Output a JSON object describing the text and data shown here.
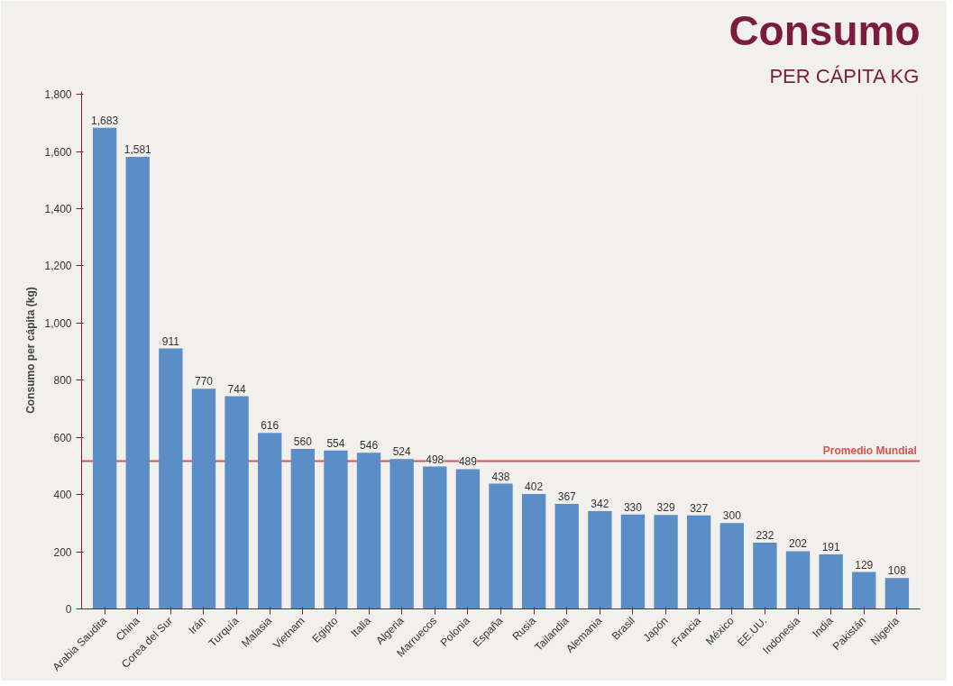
{
  "chart_data": {
    "type": "bar",
    "title": "Consumo",
    "subtitle": "PER CÁPITA KG",
    "ylabel": "Consumo per cápita (kg)",
    "categories": [
      "Arabia Saudita",
      "China",
      "Corea del Sur",
      "Irán",
      "Turquía",
      "Malasia",
      "Vietnam",
      "Egipto",
      "Italia",
      "Algeria",
      "Marruecos",
      "Polonia",
      "España",
      "Rusia",
      "Tailandia",
      "Alemania",
      "Brasil",
      "Japón",
      "Francia",
      "México",
      "EE.UU.",
      "Indonesia",
      "India",
      "Pakistán",
      "Nigeria"
    ],
    "values": [
      1683,
      1581,
      911,
      770,
      744,
      616,
      560,
      554,
      546,
      524,
      498,
      489,
      438,
      402,
      367,
      342,
      330,
      329,
      327,
      300,
      232,
      202,
      191,
      129,
      108
    ],
    "color": "#5b8ec6",
    "value_labels": [
      "1,683",
      "1,581",
      "911",
      "770",
      "744",
      "616",
      "560",
      "554",
      "546",
      "524",
      "498",
      "489",
      "438",
      "402",
      "367",
      "342",
      "330",
      "329",
      "327",
      "300",
      "232",
      "202",
      "191",
      "129",
      "108"
    ],
    "ylim": [
      0,
      1810
    ],
    "yticks": [
      0,
      {
        "value": 200,
        "label": "200"
      },
      {
        "value": 400,
        "label": "400"
      },
      {
        "value": 600,
        "label": "600"
      },
      {
        "value": 800,
        "label": "800"
      },
      {
        "value": 1000,
        "label": "1,000"
      },
      {
        "value": 1200,
        "label": "1,200"
      },
      {
        "value": 1400,
        "label": "1,400"
      },
      {
        "value": 1600,
        "label": "1,600"
      },
      {
        "value": 1800,
        "label": "1,800"
      }
    ],
    "ref_lines": [
      {
        "axis": "y",
        "value": 517,
        "label": "Promedio Mundial",
        "color": "#d9534f"
      }
    ],
    "grid": false
  }
}
